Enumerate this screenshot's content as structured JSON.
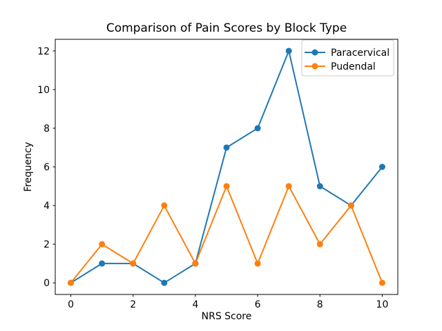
{
  "chart_data": {
    "type": "line",
    "title": "Comparison of Pain Scores by Block Type",
    "xlabel": "NRS Score",
    "ylabel": "Frequency",
    "x": [
      0,
      1,
      2,
      3,
      4,
      5,
      6,
      7,
      8,
      9,
      10
    ],
    "series": [
      {
        "name": "Paracervical",
        "color": "#1f77b4",
        "values": [
          0,
          1,
          1,
          0,
          1,
          7,
          8,
          12,
          5,
          4,
          6
        ]
      },
      {
        "name": "Pudendal",
        "color": "#ff7f0e",
        "values": [
          0,
          2,
          1,
          4,
          1,
          5,
          1,
          5,
          2,
          4,
          0
        ]
      }
    ],
    "xticks": [
      0,
      2,
      4,
      6,
      8,
      10
    ],
    "yticks": [
      0,
      2,
      4,
      6,
      8,
      10,
      12
    ],
    "xlim": [
      -0.5,
      10.5
    ],
    "ylim": [
      -0.6,
      12.6
    ],
    "grid": false,
    "legend_position": "upper right",
    "marker": "circle",
    "line_width": 2,
    "marker_radius": 4.5,
    "background_color": "#ffffff",
    "spine_color": "#000000",
    "legend_border_color": "#cccccc",
    "text_color": "#000000"
  }
}
